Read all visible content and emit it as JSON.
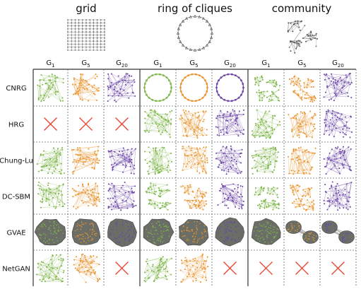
{
  "groups": [
    {
      "title": "grid",
      "cols": [
        "G1",
        "G5",
        "G20"
      ]
    },
    {
      "title": "ring of cliques",
      "cols": [
        "G1",
        "G5",
        "G20"
      ]
    },
    {
      "title": "community",
      "cols": [
        "G1",
        "G5",
        "G20"
      ]
    }
  ],
  "col_label": {
    "base": "G",
    "subs": [
      "1",
      "5",
      "20"
    ]
  },
  "rows": [
    {
      "label": "CNRG",
      "cells": [
        "net",
        "net",
        "net",
        "ring",
        "ring",
        "ring",
        "comm",
        "comm",
        "net"
      ]
    },
    {
      "label": "HRG",
      "cells": [
        "x",
        "x",
        "x",
        "net",
        "net",
        "net",
        "net",
        "net",
        "net"
      ]
    },
    {
      "label": "Chung-Lu",
      "cells": [
        "net",
        "net",
        "net",
        "net",
        "net",
        "net",
        "net",
        "net",
        "net"
      ]
    },
    {
      "label": "DC-SBM",
      "cells": [
        "net",
        "net",
        "net",
        "comm",
        "comm",
        "net",
        "comm",
        "comm",
        "net"
      ]
    },
    {
      "label": "GVAE",
      "cells": [
        "blob",
        "blob",
        "blob",
        "blob",
        "blob",
        "blob",
        "blob",
        "pair",
        "pair"
      ]
    },
    {
      "label": "NetGAN",
      "cells": [
        "net",
        "net",
        "x",
        "net",
        "net",
        "x",
        "x",
        "x",
        "x"
      ]
    }
  ],
  "colors": {
    "gen1": "#7db547",
    "gen5": "#e8932e",
    "gen20": "#6b46a6",
    "cross": "#e8402e",
    "blob_fill": "#6a6e66",
    "thumb": "#555555"
  }
}
